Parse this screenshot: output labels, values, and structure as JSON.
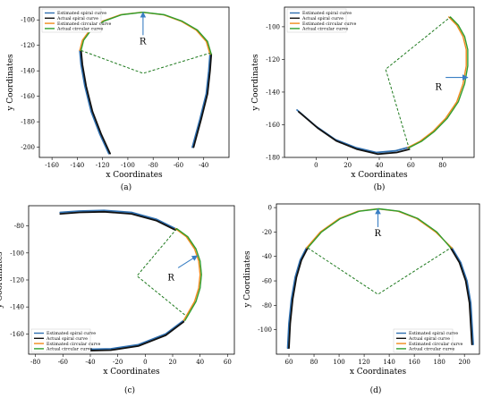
{
  "figure": {
    "colors": {
      "estimated_spiral": "#2e6fb0",
      "actual_spiral": "#111111",
      "estimated_circular": "#f08a1c",
      "actual_circular": "#2f9e2f",
      "radius_lines": "#1e7a1e",
      "r_arrow": "#3a7fc4"
    }
  },
  "chart_data": [
    {
      "type": "line",
      "panel_label": "(a)",
      "xlabel": "x  Coordinates",
      "ylabel": "y  Coordinates",
      "xlim": [
        -170,
        -20
      ],
      "ylim": [
        -208,
        -90
      ],
      "xticks": [
        -160,
        -140,
        -120,
        -100,
        -80,
        -60,
        -40
      ],
      "yticks": [
        -200,
        -180,
        -160,
        -140,
        -120,
        -100
      ],
      "legend": [
        "Estimated spiral curve",
        "Actual spiral curve",
        "Estimated circular curve",
        "Actual circular curve"
      ],
      "legend_position": "top-left",
      "annotation": "R",
      "series": [
        {
          "name": "Estimated spiral curve",
          "x": [
            -115,
            -122,
            -129,
            -134,
            -137,
            -138
          ],
          "y": [
            -205,
            -190,
            -172,
            -152,
            -135,
            -124
          ]
        },
        {
          "name": "Actual spiral curve",
          "x": [
            -114,
            -121,
            -128,
            -133,
            -136,
            -137
          ],
          "y": [
            -205,
            -190,
            -172,
            -152,
            -135,
            -124
          ]
        },
        {
          "name": "Estimated spiral curve",
          "x": [
            -49,
            -43,
            -38,
            -36,
            -35
          ],
          "y": [
            -200,
            -178,
            -158,
            -140,
            -127
          ]
        },
        {
          "name": "Actual spiral curve",
          "x": [
            -48,
            -42,
            -37,
            -35,
            -34
          ],
          "y": [
            -200,
            -178,
            -158,
            -140,
            -127
          ]
        },
        {
          "name": "Estimated circular curve",
          "x": [
            -138,
            -136,
            -130,
            -120,
            -106,
            -89,
            -72,
            -58,
            -46,
            -38,
            -35
          ],
          "y": [
            -124,
            -116,
            -108,
            -101,
            -96,
            -94,
            -96,
            -101,
            -108,
            -117,
            -127
          ]
        },
        {
          "name": "Actual circular curve",
          "x": [
            -137,
            -135,
            -129,
            -119,
            -105,
            -88,
            -71,
            -57,
            -45,
            -37,
            -34
          ],
          "y": [
            -124,
            -116,
            -108,
            -101,
            -96,
            -94,
            -96,
            -101,
            -108,
            -117,
            -127
          ]
        },
        {
          "name": "",
          "x": [
            -137,
            -88,
            -35
          ],
          "y": [
            -124,
            -142,
            -126
          ]
        }
      ],
      "radius_arrow": {
        "from": [
          -88,
          -112
        ],
        "to": [
          -88,
          -94
        ]
      }
    },
    {
      "type": "line",
      "panel_label": "(b)",
      "xlabel": "x  Coordinates",
      "ylabel": "y  Coordinates",
      "xlim": [
        -20,
        100
      ],
      "ylim": [
        -180,
        -88
      ],
      "xticks": [
        0,
        20,
        40,
        60,
        80
      ],
      "yticks": [
        -180,
        -160,
        -140,
        -120,
        -100
      ],
      "legend": [
        "Estimated spiral curve",
        "Actual spiral curve",
        "Estimated circular curve",
        "Actual circular curve"
      ],
      "legend_position": "top-left",
      "annotation": "R",
      "series": [
        {
          "name": "Estimated spiral curve",
          "x": [
            -12,
            0,
            12,
            25,
            38,
            50,
            58
          ],
          "y": [
            -151,
            -161,
            -169,
            -174,
            -177,
            -176,
            -174
          ]
        },
        {
          "name": "Actual spiral curve",
          "x": [
            -11,
            1,
            13,
            26,
            39,
            51,
            59
          ],
          "y": [
            -152,
            -162,
            -170,
            -175,
            -178,
            -177,
            -175
          ]
        },
        {
          "name": "Estimated circular curve",
          "x": [
            58,
            66,
            74,
            82,
            89,
            93,
            95,
            95,
            93,
            89,
            84
          ],
          "y": [
            -174,
            -170,
            -164,
            -156,
            -146,
            -135,
            -124,
            -114,
            -106,
            -99,
            -94
          ]
        },
        {
          "name": "Actual circular curve",
          "x": [
            59,
            67,
            75,
            83,
            90,
            94,
            96,
            96,
            94,
            90,
            85
          ],
          "y": [
            -174,
            -170,
            -164,
            -156,
            -146,
            -135,
            -124,
            -114,
            -106,
            -99,
            -94
          ]
        },
        {
          "name": "",
          "x": [
            59,
            44,
            85
          ],
          "y": [
            -175,
            -126,
            -94
          ]
        }
      ],
      "radius_arrow": {
        "from": [
          82,
          -131
        ],
        "to": [
          96,
          -131
        ]
      }
    },
    {
      "type": "line",
      "panel_label": "(c)",
      "xlabel": "x  Coordinates",
      "ylabel": "y  Coordinates",
      "xlim": [
        -85,
        65
      ],
      "ylim": [
        -175,
        -65
      ],
      "xticks": [
        -80,
        -60,
        -40,
        -20,
        0,
        20,
        40,
        60
      ],
      "yticks": [
        -160,
        -140,
        -120,
        -100,
        -80
      ],
      "legend": [
        "Estimated spiral curve",
        "Actual spiral curve",
        "Estimated circular curve",
        "Actual circular curve"
      ],
      "legend_position": "bottom-left",
      "annotation": "R",
      "series": [
        {
          "name": "Estimated spiral curve",
          "x": [
            -62,
            -48,
            -30,
            -10,
            8,
            22
          ],
          "y": [
            -70,
            -69,
            -68.5,
            -70,
            -75,
            -82
          ]
        },
        {
          "name": "Actual spiral curve",
          "x": [
            -62,
            -48,
            -30,
            -10,
            8,
            22
          ],
          "y": [
            -71,
            -70,
            -69.5,
            -71,
            -76,
            -83
          ]
        },
        {
          "name": "Estimated spiral curve",
          "x": [
            -62,
            -45,
            -25,
            -5,
            15,
            28
          ],
          "y": [
            -171,
            -171.5,
            -171,
            -168,
            -160,
            -150
          ]
        },
        {
          "name": "Actual spiral curve",
          "x": [
            -62,
            -45,
            -25,
            -5,
            15,
            28
          ],
          "y": [
            -172,
            -172.5,
            -172,
            -169,
            -161,
            -151
          ]
        },
        {
          "name": "Estimated circular curve",
          "x": [
            22,
            30,
            36,
            39,
            40,
            39,
            36,
            28
          ],
          "y": [
            -82,
            -88,
            -97,
            -106,
            -116,
            -126,
            -136,
            -150
          ]
        },
        {
          "name": "Actual circular curve",
          "x": [
            23,
            31,
            37,
            40,
            41,
            40,
            37,
            29
          ],
          "y": [
            -82,
            -88,
            -97,
            -106,
            -116,
            -126,
            -136,
            -150
          ]
        },
        {
          "name": "",
          "x": [
            23,
            -6,
            29
          ],
          "y": [
            -82,
            -117,
            -146
          ]
        }
      ],
      "radius_arrow": {
        "from": [
          24,
          -111
        ],
        "to": [
          38,
          -102
        ]
      }
    },
    {
      "type": "line",
      "panel_label": "(d)",
      "xlabel": "x  Coordinates",
      "ylabel": "y  Coordinates",
      "xlim": [
        50,
        212
      ],
      "ylim": [
        -120,
        3
      ],
      "xticks": [
        60,
        80,
        100,
        120,
        140,
        160,
        180,
        200
      ],
      "yticks": [
        -100,
        -80,
        -60,
        -40,
        -20,
        0
      ],
      "legend": [
        "Estimated spiral curve",
        "Actual spiral curve",
        "Estimated circular curve",
        "Actual circular curve"
      ],
      "legend_position": "bottom-right",
      "annotation": "R",
      "series": [
        {
          "name": "Estimated spiral curve",
          "x": [
            59,
            60,
            62,
            65,
            69,
            74
          ],
          "y": [
            -115,
            -95,
            -75,
            -57,
            -43,
            -33
          ]
        },
        {
          "name": "Actual spiral curve",
          "x": [
            60,
            61,
            63,
            66,
            70,
            75
          ],
          "y": [
            -115,
            -95,
            -75,
            -57,
            -43,
            -33
          ]
        },
        {
          "name": "Estimated spiral curve",
          "x": [
            190,
            197,
            202,
            205,
            206,
            207
          ],
          "y": [
            -33,
            -45,
            -60,
            -78,
            -95,
            -112
          ]
        },
        {
          "name": "Actual spiral curve",
          "x": [
            189,
            196,
            201,
            204,
            205,
            206
          ],
          "y": [
            -33,
            -45,
            -60,
            -78,
            -95,
            -112
          ]
        },
        {
          "name": "Estimated circular curve",
          "x": [
            74,
            85,
            100,
            115,
            131,
            147,
            162,
            177,
            190
          ],
          "y": [
            -33,
            -20,
            -9,
            -3,
            -1,
            -3,
            -9,
            -20,
            -33
          ]
        },
        {
          "name": "Actual circular curve",
          "x": [
            75,
            86,
            101,
            116,
            132,
            148,
            163,
            178,
            189
          ],
          "y": [
            -33,
            -20,
            -9,
            -3,
            -1,
            -3,
            -9,
            -20,
            -33
          ]
        },
        {
          "name": "",
          "x": [
            75,
            131,
            189
          ],
          "y": [
            -33,
            -71,
            -33
          ]
        }
      ],
      "radius_arrow": {
        "from": [
          131,
          -16
        ],
        "to": [
          131,
          -1
        ]
      }
    }
  ]
}
